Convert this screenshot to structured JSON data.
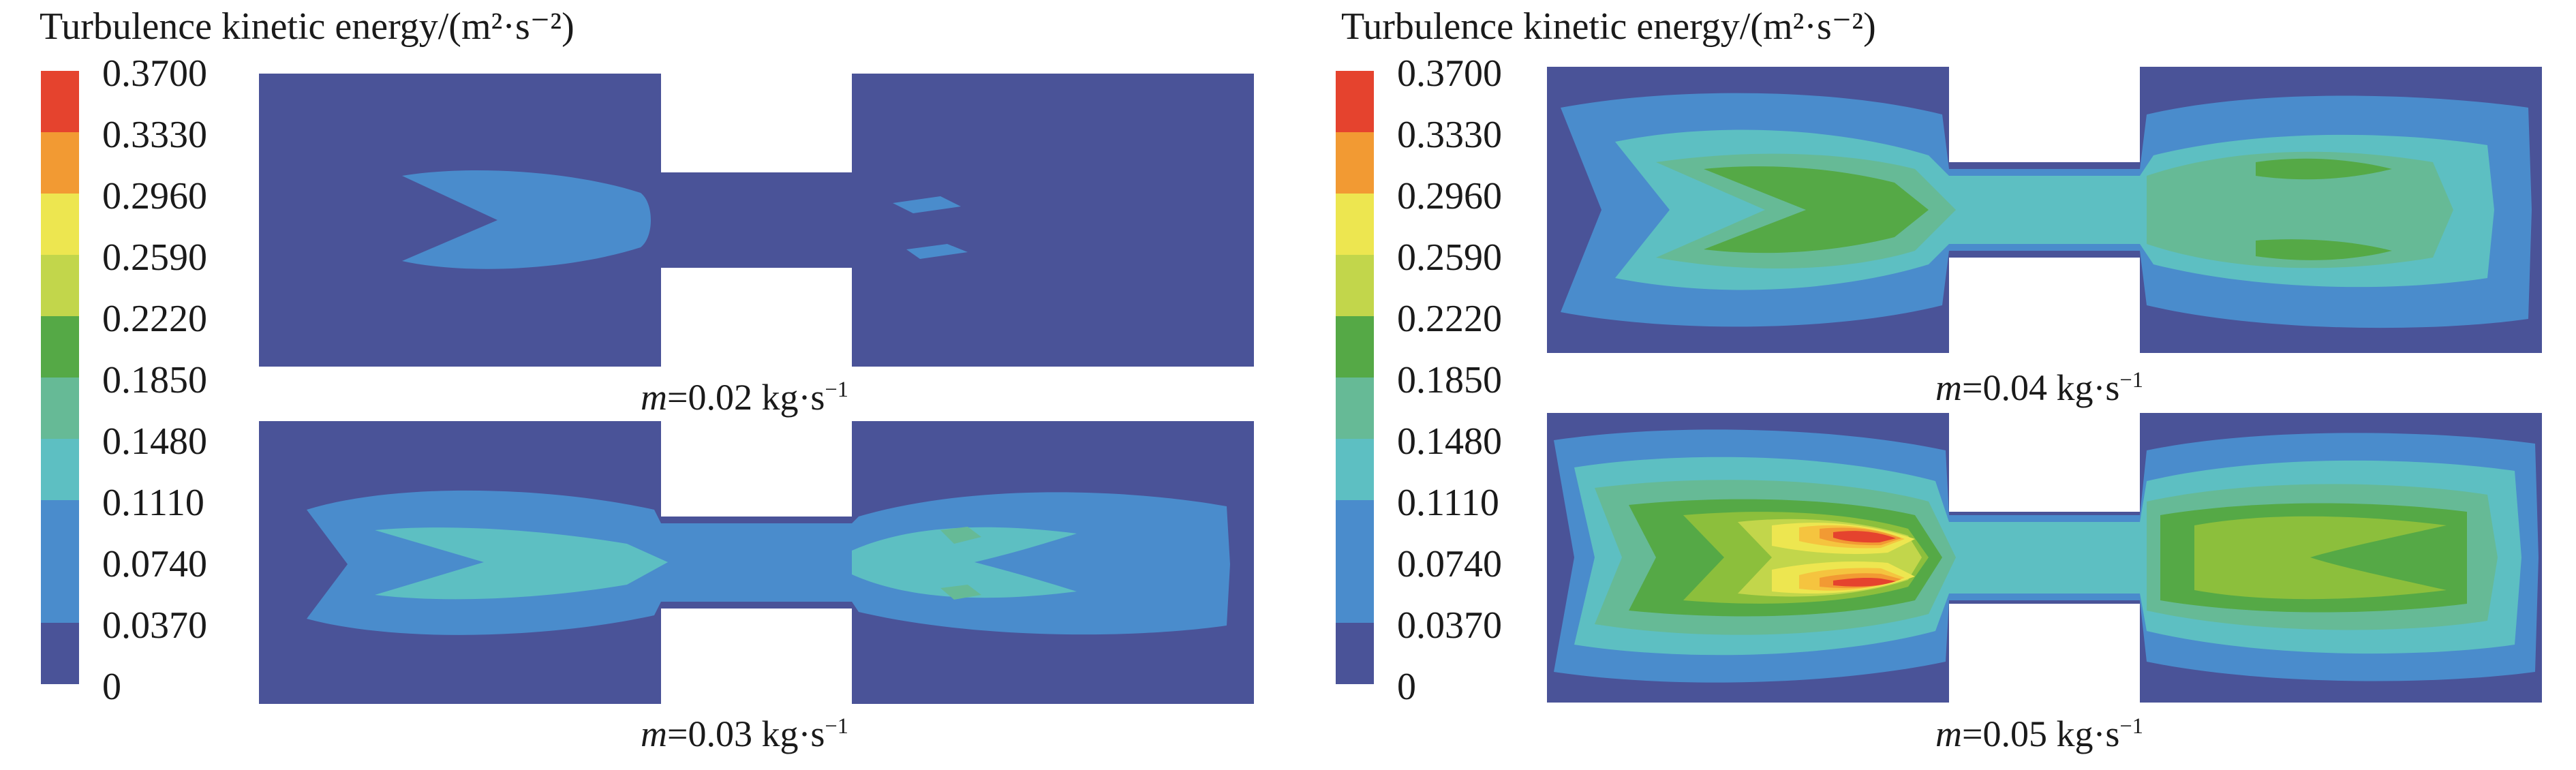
{
  "panels": [
    {
      "legend_title": "Turbulence kinetic energy/(m²·s⁻²)",
      "levels": [
        "0.3700",
        "0.3330",
        "0.2960",
        "0.2590",
        "0.2220",
        "0.1850",
        "0.1480",
        "0.1110",
        "0.0740",
        "0.0370",
        "0"
      ],
      "cases": [
        {
          "symbol": "m",
          "value": "=0.02 kg·s",
          "exp": "−1"
        },
        {
          "symbol": "m",
          "value": "=0.03 kg·s",
          "exp": "−1"
        }
      ]
    },
    {
      "legend_title": "Turbulence kinetic energy/(m²·s⁻²)",
      "levels": [
        "0.3700",
        "0.3330",
        "0.2960",
        "0.2590",
        "0.2220",
        "0.1850",
        "0.1480",
        "0.1110",
        "0.0740",
        "0.0370",
        "0"
      ],
      "cases": [
        {
          "symbol": "m",
          "value": "=0.04 kg·s",
          "exp": "−1"
        },
        {
          "symbol": "m",
          "value": "=0.05 kg·s",
          "exp": "−1"
        }
      ]
    }
  ],
  "colormap": [
    "#4a5398",
    "#4a8ccc",
    "#5dbfc2",
    "#66ba96",
    "#55a946",
    "#8cbf3c",
    "#c2d64b",
    "#ede650",
    "#f5c43f",
    "#f29a33",
    "#e5432e"
  ]
}
